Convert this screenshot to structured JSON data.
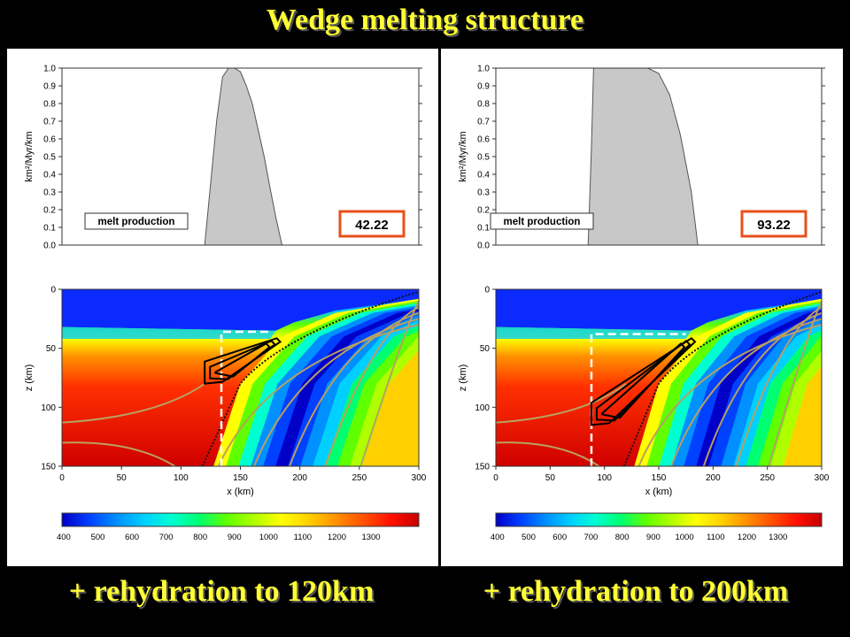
{
  "title": "Wedge melting structure",
  "captions": [
    "+ rehydration to 120km",
    "+ rehydration to 200km"
  ],
  "colors": {
    "title_text": "#ffff33",
    "background": "#000000",
    "highlight_box": "#e8501a",
    "melt_fill": "#c8c8c8"
  },
  "chart_data": [
    {
      "type": "area",
      "panel": "left",
      "ylabel": "km²/Myr/km",
      "label": "melt production",
      "value_box": "42.22",
      "ylim": [
        0,
        1.0
      ],
      "xlim": [
        0,
        300
      ],
      "yticks": [
        "0.0",
        "0.1",
        "0.2",
        "0.3",
        "0.4",
        "0.5",
        "0.6",
        "0.7",
        "0.8",
        "0.9",
        "1.0"
      ],
      "x": [
        120,
        125,
        130,
        135,
        140,
        145,
        150,
        155,
        160,
        165,
        170,
        175,
        180,
        185
      ],
      "y": [
        0.0,
        0.35,
        0.7,
        0.95,
        1.0,
        1.0,
        0.98,
        0.9,
        0.8,
        0.65,
        0.5,
        0.32,
        0.15,
        0.0
      ]
    },
    {
      "type": "heatmap",
      "panel": "left",
      "xlabel": "x (km)",
      "ylabel": "z (km)",
      "xlim": [
        0,
        300
      ],
      "ylim": [
        150,
        0
      ],
      "xticks": [
        "0",
        "50",
        "100",
        "150",
        "200",
        "250",
        "300"
      ],
      "yticks": [
        "0",
        "50",
        "100",
        "150"
      ],
      "colorbar_ticks": [
        "400",
        "500",
        "600",
        "700",
        "800",
        "900",
        "1000",
        "1100",
        "1200",
        "1300"
      ],
      "rehydration_box": {
        "x_left": 134,
        "z_top": 36
      },
      "melt_region": {
        "x_min": 120,
        "x_max": 185,
        "z_min": 40,
        "z_max": 80
      }
    },
    {
      "type": "area",
      "panel": "right",
      "ylabel": "km²/Myr/km",
      "label": "melt production",
      "value_box": "93.22",
      "ylim": [
        0,
        1.0
      ],
      "xlim": [
        0,
        300
      ],
      "yticks": [
        "0.0",
        "0.1",
        "0.2",
        "0.3",
        "0.4",
        "0.5",
        "0.6",
        "0.7",
        "0.8",
        "0.9",
        "1.0"
      ],
      "x": [
        85,
        88,
        90,
        100,
        110,
        120,
        130,
        140,
        150,
        160,
        170,
        180,
        186
      ],
      "y": [
        0.0,
        0.55,
        1.0,
        1.0,
        1.0,
        1.0,
        1.0,
        1.0,
        0.97,
        0.85,
        0.62,
        0.3,
        0.0
      ]
    },
    {
      "type": "heatmap",
      "panel": "right",
      "xlabel": "x (km)",
      "ylabel": "z (km)",
      "xlim": [
        0,
        300
      ],
      "ylim": [
        150,
        0
      ],
      "xticks": [
        "0",
        "50",
        "100",
        "150",
        "200",
        "250",
        "300"
      ],
      "yticks": [
        "0",
        "50",
        "100",
        "150"
      ],
      "colorbar_ticks": [
        "400",
        "500",
        "600",
        "700",
        "800",
        "900",
        "1000",
        "1100",
        "1200",
        "1300"
      ],
      "rehydration_box": {
        "x_left": 88,
        "z_top": 38
      },
      "melt_region": {
        "x_min": 88,
        "x_max": 185,
        "z_min": 40,
        "z_max": 115
      }
    }
  ]
}
